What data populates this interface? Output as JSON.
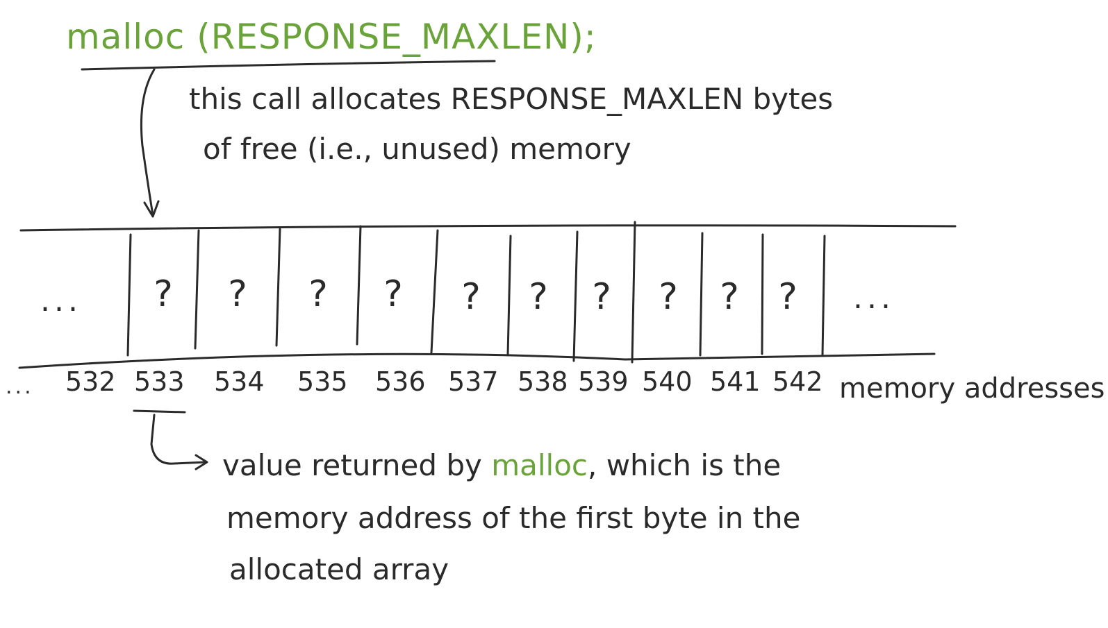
{
  "code": {
    "func": "malloc",
    "paren_open": " (",
    "arg": "RESPONSE_MAXLEN",
    "paren_close": ");"
  },
  "top_note": {
    "line1": "this call allocates RESPONSE_MAXLEN bytes",
    "line2": "of free (i.e., unused) memory"
  },
  "memory": {
    "ellipsis": "...",
    "cell_value": "?",
    "addresses": [
      "532",
      "533",
      "534",
      "535",
      "536",
      "537",
      "538",
      "539",
      "540",
      "541",
      "542"
    ],
    "addresses_label": "memory addresses"
  },
  "bottom_note": {
    "prefix": "value returned by ",
    "func": "malloc",
    "suffix": ", which is the",
    "line2": "memory address of the first byte in the",
    "line3": "allocated array"
  },
  "colors": {
    "ink": "#2a2a2a",
    "code": "#6aa33a"
  }
}
